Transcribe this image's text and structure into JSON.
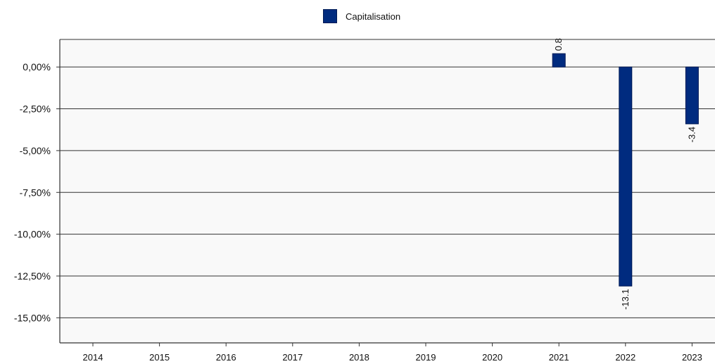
{
  "chart_data": {
    "type": "bar",
    "categories": [
      "2014",
      "2015",
      "2016",
      "2017",
      "2018",
      "2019",
      "2020",
      "2021",
      "2022",
      "2023"
    ],
    "series": [
      {
        "name": "Capitalisation",
        "values": [
          null,
          null,
          null,
          null,
          null,
          null,
          null,
          0.8,
          -13.1,
          -3.4
        ],
        "labels": [
          "",
          "",
          "",
          "",
          "",
          "",
          "",
          "0.8",
          "-13.1",
          "-3.4"
        ],
        "color": "#002b7f"
      }
    ],
    "yticks": [
      0,
      -2.5,
      -5,
      -7.5,
      -10,
      -12.5,
      -15
    ],
    "ytick_labels": [
      "0,00%",
      "-2,50%",
      "-5,00%",
      "-7,50%",
      "-10,00%",
      "-12,50%",
      "-15,00%"
    ],
    "ylim": [
      -16.5,
      1.65
    ],
    "grid": true,
    "legend_position": "top-center",
    "plot_background": "#f9f9f9"
  }
}
